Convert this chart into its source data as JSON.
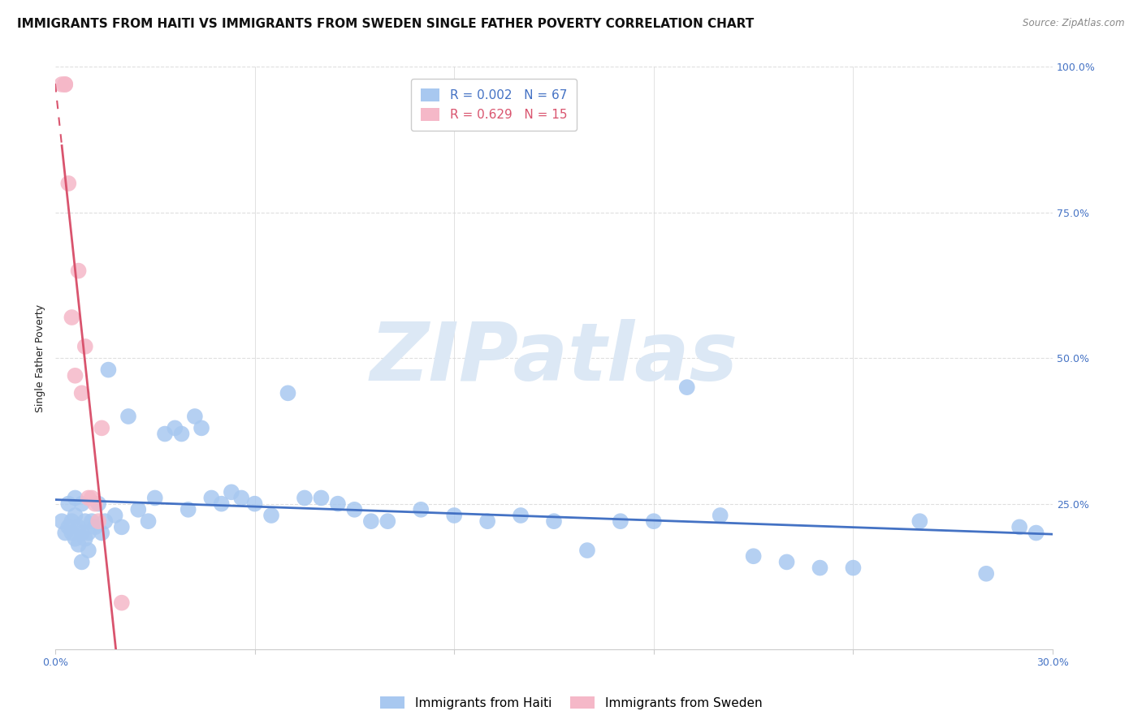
{
  "title": "IMMIGRANTS FROM HAITI VS IMMIGRANTS FROM SWEDEN SINGLE FATHER POVERTY CORRELATION CHART",
  "source": "Source: ZipAtlas.com",
  "ylabel": "Single Father Poverty",
  "xlim": [
    0.0,
    0.3
  ],
  "ylim": [
    0.0,
    1.0
  ],
  "haiti_R": "0.002",
  "haiti_N": "67",
  "sweden_R": "0.629",
  "sweden_N": "15",
  "haiti_color": "#a8c8f0",
  "sweden_color": "#f5b8c8",
  "haiti_line_color": "#4472c4",
  "sweden_line_color": "#d9546e",
  "haiti_scatter_x": [
    0.002,
    0.003,
    0.004,
    0.004,
    0.005,
    0.005,
    0.006,
    0.006,
    0.007,
    0.007,
    0.008,
    0.008,
    0.009,
    0.009,
    0.01,
    0.01,
    0.011,
    0.012,
    0.013,
    0.014,
    0.015,
    0.016,
    0.018,
    0.02,
    0.022,
    0.025,
    0.028,
    0.03,
    0.033,
    0.036,
    0.038,
    0.04,
    0.042,
    0.044,
    0.047,
    0.05,
    0.053,
    0.056,
    0.06,
    0.065,
    0.07,
    0.075,
    0.08,
    0.085,
    0.09,
    0.095,
    0.1,
    0.11,
    0.12,
    0.13,
    0.14,
    0.15,
    0.16,
    0.17,
    0.18,
    0.19,
    0.2,
    0.21,
    0.22,
    0.23,
    0.24,
    0.26,
    0.28,
    0.29,
    0.295,
    0.006,
    0.008
  ],
  "haiti_scatter_y": [
    0.22,
    0.2,
    0.21,
    0.25,
    0.2,
    0.22,
    0.19,
    0.23,
    0.18,
    0.21,
    0.2,
    0.25,
    0.19,
    0.22,
    0.17,
    0.2,
    0.22,
    0.21,
    0.25,
    0.2,
    0.22,
    0.48,
    0.23,
    0.21,
    0.4,
    0.24,
    0.22,
    0.26,
    0.37,
    0.38,
    0.37,
    0.24,
    0.4,
    0.38,
    0.26,
    0.25,
    0.27,
    0.26,
    0.25,
    0.23,
    0.44,
    0.26,
    0.26,
    0.25,
    0.24,
    0.22,
    0.22,
    0.24,
    0.23,
    0.22,
    0.23,
    0.22,
    0.17,
    0.22,
    0.22,
    0.45,
    0.23,
    0.16,
    0.15,
    0.14,
    0.14,
    0.22,
    0.13,
    0.21,
    0.2,
    0.26,
    0.15
  ],
  "sweden_scatter_x": [
    0.002,
    0.003,
    0.003,
    0.004,
    0.005,
    0.006,
    0.007,
    0.008,
    0.009,
    0.01,
    0.011,
    0.012,
    0.013,
    0.014,
    0.02
  ],
  "sweden_scatter_y": [
    0.97,
    0.97,
    0.97,
    0.8,
    0.57,
    0.47,
    0.65,
    0.44,
    0.52,
    0.26,
    0.26,
    0.25,
    0.22,
    0.38,
    0.08
  ],
  "haiti_line_y_intercept": 0.222,
  "haiti_line_slope": 0.0,
  "background_color": "#ffffff",
  "grid_color": "#d8d8d8",
  "title_fontsize": 11,
  "axis_label_fontsize": 9,
  "tick_fontsize": 9,
  "legend_fontsize": 11,
  "watermark_text": "ZIPatlas",
  "watermark_color": "#dce8f5",
  "legend_label_haiti": "Immigrants from Haiti",
  "legend_label_sweden": "Immigrants from Sweden"
}
